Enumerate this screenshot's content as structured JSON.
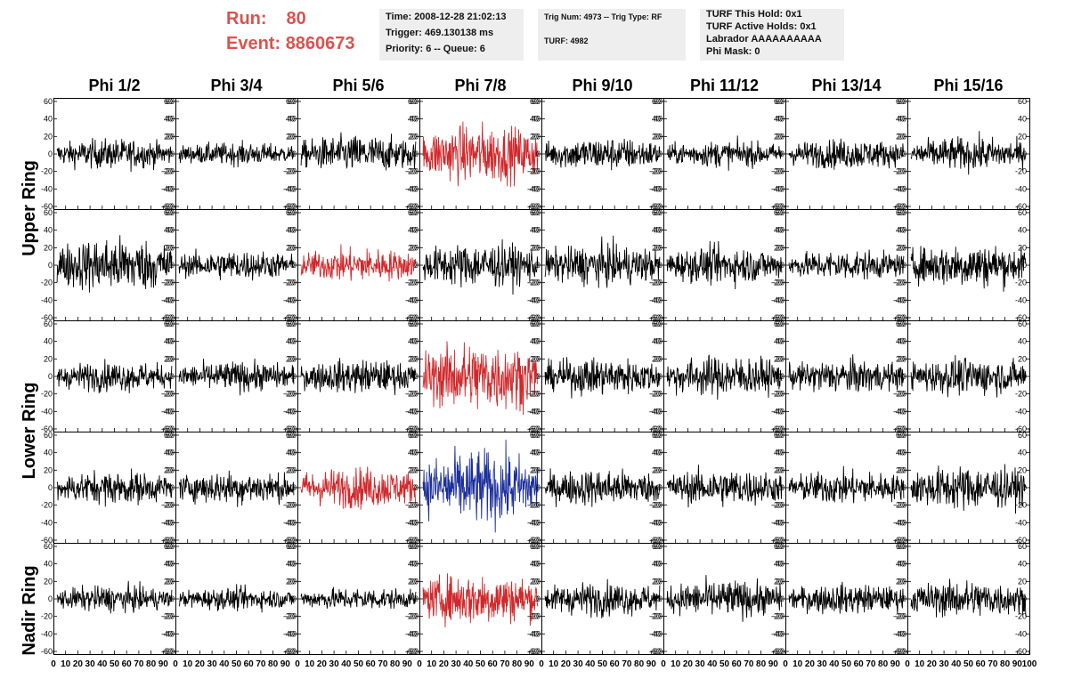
{
  "header": {
    "run_label": "Run:",
    "run_value": "80",
    "event_label": "Event:",
    "event_value": "8860673"
  },
  "info": {
    "time": "Time: 2008-12-28 21:02:13",
    "trigger": "Trigger: 469.130138 ms",
    "priority": "Priority: 6 -- Queue: 6",
    "trig_num": "Trig Num: 4973 -- Trig Type: RF",
    "turf": "TURF: 4982",
    "turf_this_hold": "TURF This Hold: 0x1",
    "turf_active_holds": "TURF Active Holds: 0x1",
    "labrador": "Labrador AAAAAAAAAA",
    "phi_mask": "Phi Mask: 0"
  },
  "columns": [
    "Phi 1/2",
    "Phi 3/4",
    "Phi 5/6",
    "Phi 7/8",
    "Phi 9/10",
    "Phi 11/12",
    "Phi 13/14",
    "Phi 15/16"
  ],
  "rings": [
    "Upper Ring",
    "Lower Ring",
    "Nadir Ring"
  ],
  "colors": {
    "normal": "#000000",
    "triggered": "#d0282b",
    "triggered_blue": "#1c2f9c",
    "run_text": "#d9534f"
  },
  "chart_data": {
    "type": "line",
    "layout": "5 rows x 8 columns of waveform panels",
    "row_groups": [
      {
        "ring": "Upper Ring",
        "rows": [
          0,
          1
        ]
      },
      {
        "ring": "Lower Ring",
        "rows": [
          2,
          3
        ]
      },
      {
        "ring": "Nadir Ring",
        "rows": [
          4
        ]
      }
    ],
    "xlim": [
      0,
      100
    ],
    "ylim": [
      -60,
      60
    ],
    "x_ticks": [
      "0",
      "10",
      "20",
      "30",
      "40",
      "50",
      "60",
      "70",
      "80",
      "90",
      "100"
    ],
    "y_ticks": [
      "-60",
      "-40",
      "-20",
      "0",
      "20",
      "40",
      "60"
    ],
    "panel_amplitudes": [
      [
        16,
        12,
        20,
        32,
        18,
        14,
        16,
        18
      ],
      [
        30,
        16,
        18,
        24,
        22,
        20,
        16,
        24
      ],
      [
        16,
        16,
        18,
        38,
        20,
        22,
        18,
        20
      ],
      [
        18,
        18,
        22,
        40,
        20,
        20,
        18,
        24
      ],
      [
        14,
        12,
        12,
        28,
        18,
        20,
        16,
        20
      ]
    ],
    "panel_colors": [
      [
        "normal",
        "normal",
        "normal",
        "triggered",
        "normal",
        "normal",
        "normal",
        "normal"
      ],
      [
        "normal",
        "normal",
        "triggered",
        "normal",
        "normal",
        "normal",
        "normal",
        "normal"
      ],
      [
        "normal",
        "normal",
        "normal",
        "triggered",
        "normal",
        "normal",
        "normal",
        "normal"
      ],
      [
        "normal",
        "normal",
        "triggered",
        "triggered_blue",
        "normal",
        "normal",
        "normal",
        "normal"
      ],
      [
        "normal",
        "normal",
        "normal",
        "triggered",
        "normal",
        "normal",
        "normal",
        "normal"
      ]
    ]
  }
}
